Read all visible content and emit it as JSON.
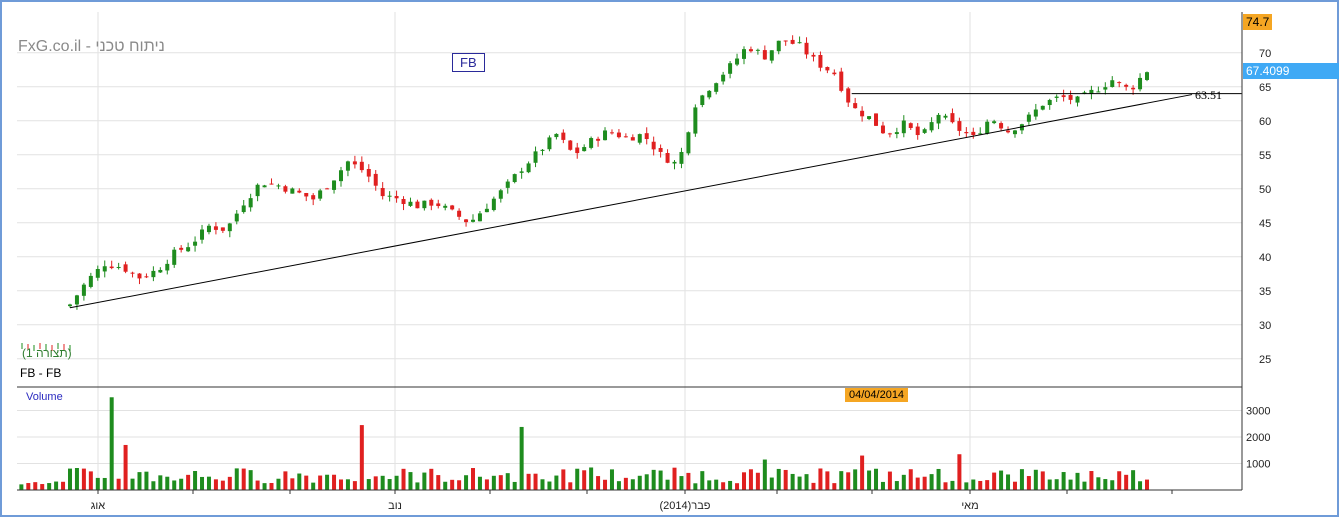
{
  "brand": "FxG.co.il - ניתוח טכני",
  "symbol": "FB",
  "legend": {
    "pattern": "(תצורה 1)",
    "series": "FB - FB"
  },
  "volume_label": "Volume",
  "date_flag": "04/04/2014",
  "max_flag": "74.7",
  "last_flag": "67.4099",
  "trendline_value": "63.51",
  "colors": {
    "up": "#1e8c1e",
    "down": "#e02020",
    "grid": "#e2e2e2",
    "flag": "#f5a623",
    "last": "#3fa9f5",
    "frame": "#6f9bd8"
  },
  "chart_data": [
    {
      "type": "candlestick",
      "title": "FB",
      "y_axis": {
        "side": "right",
        "range": [
          21,
          76
        ],
        "ticks": [
          25,
          30,
          35,
          40,
          45,
          50,
          55,
          60,
          65,
          70
        ]
      },
      "x_axis": {
        "labels": [
          "אוג",
          "נוב",
          "פבר(2014)",
          "מאי"
        ]
      },
      "grid": true,
      "series": [
        {
          "name": "FB",
          "close_path": [
            [
              0,
              33.0
            ],
            [
              5,
              36.5
            ],
            [
              10,
              39.0
            ],
            [
              15,
              38.5
            ],
            [
              20,
              37.0
            ],
            [
              25,
              38.0
            ],
            [
              30,
              40.5
            ],
            [
              35,
              42.0
            ],
            [
              40,
              44.5
            ],
            [
              45,
              44.0
            ],
            [
              50,
              48.0
            ],
            [
              55,
              51.0
            ],
            [
              60,
              50.5
            ],
            [
              65,
              49.5
            ],
            [
              70,
              48.5
            ],
            [
              75,
              51.0
            ],
            [
              80,
              54.0
            ],
            [
              85,
              52.5
            ],
            [
              90,
              49.0
            ],
            [
              95,
              48.5
            ],
            [
              100,
              47.5
            ],
            [
              105,
              48.0
            ],
            [
              110,
              46.5
            ],
            [
              115,
              45.0
            ],
            [
              120,
              47.5
            ],
            [
              125,
              50.0
            ],
            [
              130,
              53.0
            ],
            [
              135,
              55.5
            ],
            [
              140,
              58.0
            ],
            [
              145,
              55.0
            ],
            [
              150,
              57.0
            ],
            [
              155,
              58.5
            ],
            [
              160,
              57.5
            ],
            [
              165,
              58.0
            ],
            [
              170,
              55.0
            ],
            [
              175,
              53.5
            ],
            [
              180,
              62.5
            ],
            [
              185,
              65.5
            ],
            [
              190,
              68.0
            ],
            [
              195,
              71.0
            ],
            [
              200,
              69.5
            ],
            [
              205,
              72.0
            ],
            [
              210,
              71.0
            ],
            [
              215,
              68.5
            ],
            [
              220,
              67.0
            ],
            [
              225,
              62.0
            ],
            [
              230,
              60.5
            ],
            [
              235,
              58.0
            ],
            [
              240,
              59.5
            ],
            [
              245,
              57.5
            ],
            [
              250,
              61.0
            ],
            [
              255,
              59.0
            ],
            [
              260,
              57.5
            ],
            [
              265,
              60.5
            ],
            [
              270,
              58.5
            ],
            [
              275,
              60.0
            ],
            [
              280,
              62.5
            ],
            [
              285,
              63.5
            ],
            [
              290,
              63.0
            ],
            [
              295,
              64.5
            ],
            [
              300,
              66.0
            ],
            [
              305,
              64.5
            ],
            [
              310,
              67.4
            ]
          ]
        }
      ],
      "horizontal_line": 64,
      "trendline": {
        "from": [
          0,
          32.5
        ],
        "to": [
          310,
          62.6
        ],
        "label": "63.51"
      },
      "last": 67.4099,
      "max": 74.7
    },
    {
      "type": "bar",
      "title": "Volume",
      "y_axis": {
        "ticks": [
          1000,
          2000,
          3000
        ]
      },
      "spikes": [
        [
          12,
          3500
        ],
        [
          16,
          1700
        ],
        [
          85,
          2450
        ],
        [
          130,
          2380
        ],
        [
          150,
          850
        ],
        [
          200,
          1150
        ],
        [
          228,
          1300
        ],
        [
          257,
          1350
        ]
      ],
      "typical_range": [
        250,
        850
      ]
    }
  ]
}
